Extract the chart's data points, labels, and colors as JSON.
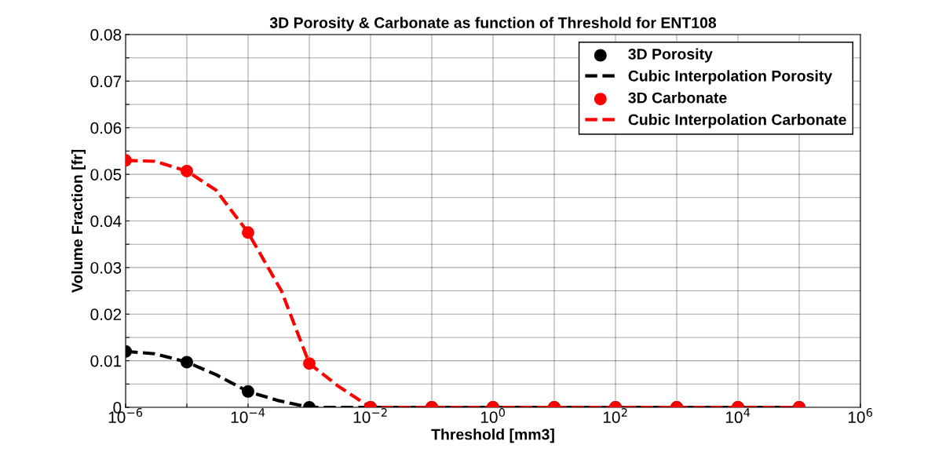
{
  "chart_data": {
    "type": "line",
    "title": "3D Porosity & Carbonate as function of Threshold for ENT108",
    "xlabel": "Threshold [mm3]",
    "ylabel": "Volume Fraction [fr]",
    "log": "x",
    "xlim": [
      1e-06,
      1000000.0
    ],
    "ylim": [
      0,
      0.08
    ],
    "xticks": [
      {
        "value": 1e-06,
        "label": "10$^{−6}$"
      },
      {
        "value": 1e-05,
        "label": null
      },
      {
        "value": 0.0001,
        "label": "10$^{−4}$"
      },
      {
        "value": 0.001,
        "label": null
      },
      {
        "value": 0.01,
        "label": "10$^{−2}$"
      },
      {
        "value": 0.1,
        "label": null
      },
      {
        "value": 1,
        "label": "10$^{0}$"
      },
      {
        "value": 10,
        "label": null
      },
      {
        "value": 100,
        "label": "10$^{2}$"
      },
      {
        "value": 1000,
        "label": null
      },
      {
        "value": 10000,
        "label": "10$^{4}$"
      },
      {
        "value": 100000,
        "label": null
      },
      {
        "value": 1000000,
        "label": "10$^{6}$"
      }
    ],
    "yticks": [
      0,
      {
        "value": 0.005,
        "label": null
      },
      0.01,
      {
        "value": 0.015,
        "label": null
      },
      0.02,
      {
        "value": 0.025,
        "label": null
      },
      0.03,
      {
        "value": 0.035,
        "label": null
      },
      0.04,
      {
        "value": 0.045,
        "label": null
      },
      0.05,
      {
        "value": 0.055,
        "label": null
      },
      0.06,
      {
        "value": 0.065,
        "label": null
      },
      0.07,
      {
        "value": 0.075,
        "label": null
      },
      0.08
    ],
    "grid": true,
    "legend": "top right",
    "series": [
      {
        "name": "3D Porosity",
        "type": "scatter",
        "marker": "circle",
        "color": "#000000",
        "x": [
          1e-06,
          1e-05,
          0.0001,
          0.001,
          0.01,
          0.1,
          1,
          10,
          100,
          1000,
          10000,
          100000
        ],
        "values": [
          0.012,
          0.0097,
          0.0034,
          0,
          0,
          0,
          0,
          0,
          0,
          0,
          0,
          0
        ]
      },
      {
        "name": "Cubic Interpolation Porosity",
        "line_style": "dashed",
        "color": "#000000",
        "x": [
          1e-06,
          3e-06,
          1e-05,
          3e-05,
          0.0001,
          0.0003,
          0.001,
          0.01,
          100000
        ],
        "values": [
          0.012,
          0.0115,
          0.0097,
          0.007,
          0.0034,
          0.0015,
          0,
          0,
          0
        ]
      },
      {
        "name": "3D Carbonate",
        "type": "scatter",
        "marker": "circle",
        "color": "#ff0000",
        "x": [
          1e-06,
          1e-05,
          0.0001,
          0.001,
          0.01,
          0.1,
          1,
          10,
          100,
          1000,
          10000,
          100000
        ],
        "values": [
          0.053,
          0.0507,
          0.0375,
          0.0094,
          0,
          0,
          0,
          0,
          0,
          0,
          0,
          0
        ]
      },
      {
        "name": "Cubic Interpolation Carbonate",
        "line_style": "dashed",
        "color": "#ff0000",
        "x": [
          1e-06,
          3e-06,
          1e-05,
          3e-05,
          0.0001,
          0.00035,
          0.001,
          0.003,
          0.01,
          100000
        ],
        "values": [
          0.053,
          0.0528,
          0.0507,
          0.0466,
          0.0375,
          0.025,
          0.0094,
          0.0045,
          0,
          0
        ]
      }
    ]
  }
}
